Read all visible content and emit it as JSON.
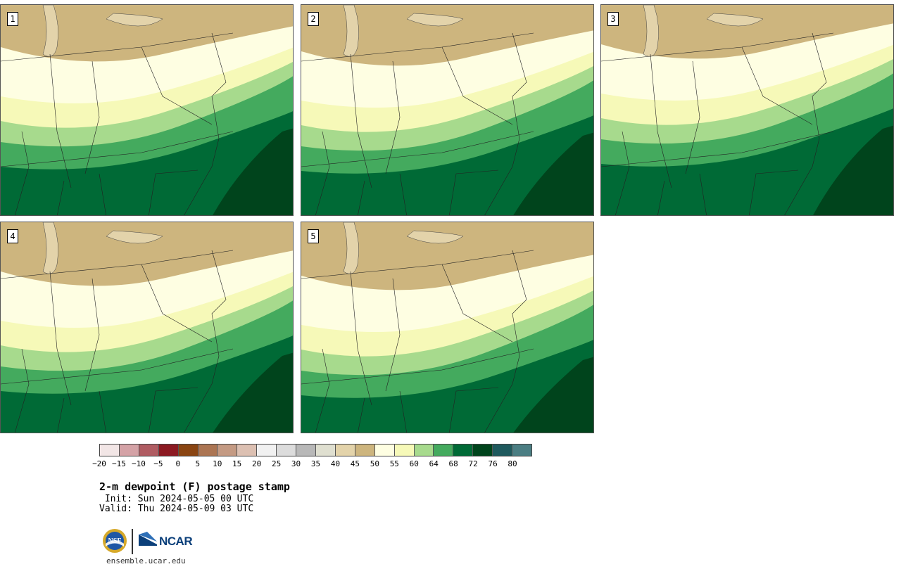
{
  "panels": [
    {
      "label": "1"
    },
    {
      "label": "2"
    },
    {
      "label": "3"
    },
    {
      "label": "4"
    },
    {
      "label": "5"
    }
  ],
  "colorbar": {
    "colors": [
      "#f2e6e6",
      "#d4a2a6",
      "#b05c62",
      "#8c1a22",
      "#8a4512",
      "#ac7553",
      "#c49a83",
      "#dcc0b2",
      "#f1f1f1",
      "#dcdcdc",
      "#b8b8b8",
      "#dfdfd0",
      "#e3d3aa",
      "#cdb57e",
      "#fefee2",
      "#f6f9b8",
      "#a7da8d",
      "#44aa5e",
      "#006a36",
      "#00441c",
      "#1f5a5e",
      "#4b7e83"
    ],
    "ticks": [
      "−20",
      "−15",
      "−10",
      "−5",
      "0",
      "5",
      "10",
      "15",
      "20",
      "25",
      "30",
      "35",
      "40",
      "45",
      "50",
      "55",
      "60",
      "64",
      "68",
      "72",
      "76",
      "80"
    ]
  },
  "title": "2-m dewpoint (F) postage stamp",
  "init": " Init: Sun 2024-05-05 00 UTC",
  "valid": "Valid: Thu 2024-05-09 03 UTC",
  "logos": {
    "nsf": "NSF",
    "ncar": "NCAR"
  },
  "site": "ensemble.ucar.edu"
}
